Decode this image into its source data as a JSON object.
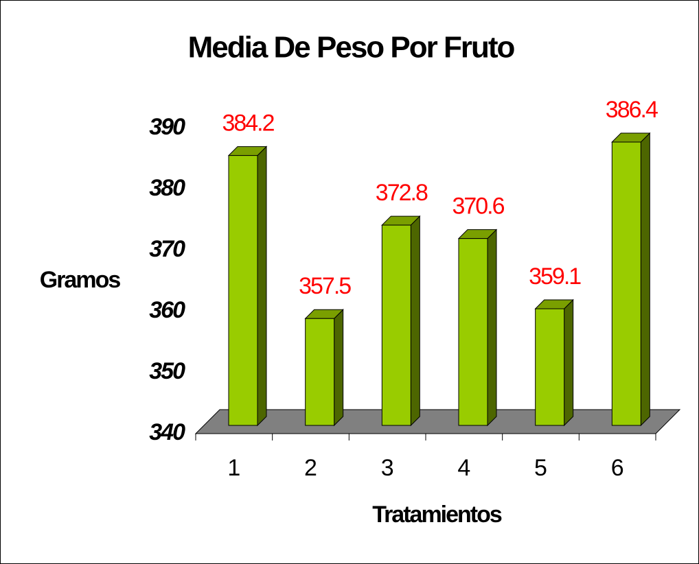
{
  "chart_data": {
    "type": "bar",
    "title": "Media De Peso Por Fruto",
    "x_label": "Tratamientos",
    "y_label": "Gramos",
    "categories": [
      "1",
      "2",
      "3",
      "4",
      "5",
      "6"
    ],
    "values": [
      384.2,
      357.5,
      372.8,
      370.6,
      359.1,
      386.4
    ],
    "color": "#99cc00",
    "value_label_color": "#ff0000",
    "ylim": [
      340,
      390
    ],
    "yticks": [
      340,
      350,
      360,
      370,
      380,
      390
    ]
  }
}
